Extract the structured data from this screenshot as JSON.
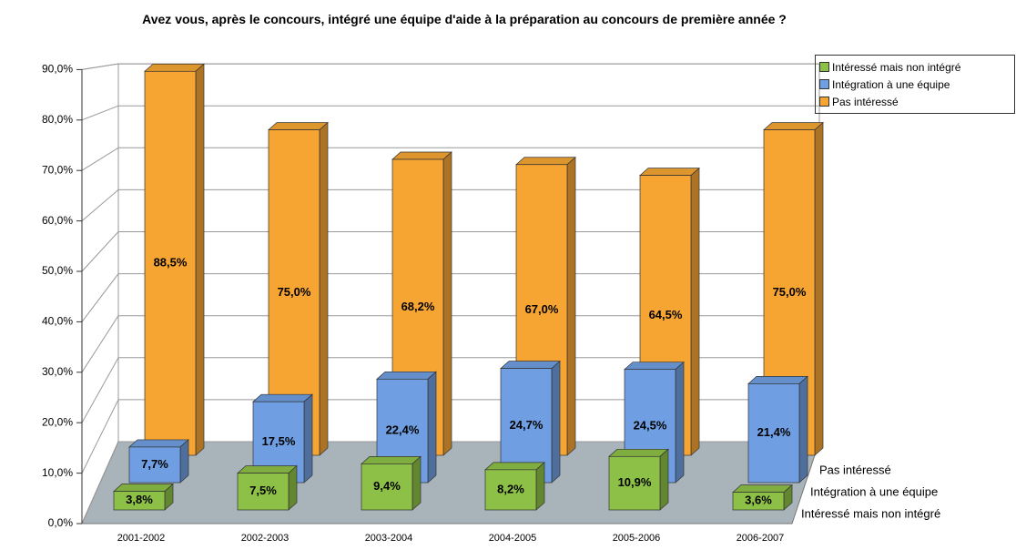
{
  "chart_data": {
    "type": "bar3d",
    "title": "Avez vous, après le concours, intégré une équipe d'aide à la préparation au concours de première année ?",
    "categories": [
      "2001-2002",
      "2002-2003",
      "2003-2004",
      "2004-2005",
      "2005-2006",
      "2006-2007"
    ],
    "series": [
      {
        "name": "Intéressé mais non intégré",
        "color": "#8dc046",
        "values": [
          3.8,
          7.5,
          9.4,
          8.2,
          10.9,
          3.6
        ],
        "value_labels": [
          "3,8%",
          "7,5%",
          "9,4%",
          "8,2%",
          "10,9%",
          "3,6%"
        ]
      },
      {
        "name": "Intégration à une équipe",
        "color": "#6f9fe2",
        "values": [
          7.7,
          17.5,
          22.4,
          24.7,
          24.5,
          21.4
        ],
        "value_labels": [
          "7,7%",
          "17,5%",
          "22,4%",
          "24,7%",
          "24,5%",
          "21,4%"
        ]
      },
      {
        "name": "Pas intéressé",
        "color": "#f6a533",
        "values": [
          88.5,
          75.0,
          68.2,
          67.0,
          64.5,
          75.0
        ],
        "value_labels": [
          "88,5%",
          "75,0%",
          "68,2%",
          "67,0%",
          "64,5%",
          "75,0%"
        ]
      }
    ],
    "ylim": [
      0,
      90
    ],
    "yticks": [
      {
        "value": 0,
        "label": "0,0%"
      },
      {
        "value": 10,
        "label": "10,0%"
      },
      {
        "value": 20,
        "label": "20,0%"
      },
      {
        "value": 30,
        "label": "30,0%"
      },
      {
        "value": 40,
        "label": "40,0%"
      },
      {
        "value": 50,
        "label": "50,0%"
      },
      {
        "value": 60,
        "label": "60,0%"
      },
      {
        "value": 70,
        "label": "70,0%"
      },
      {
        "value": 80,
        "label": "80,0%"
      },
      {
        "value": 90,
        "label": "90,0%"
      }
    ],
    "grid": true,
    "legend": "top-right"
  }
}
